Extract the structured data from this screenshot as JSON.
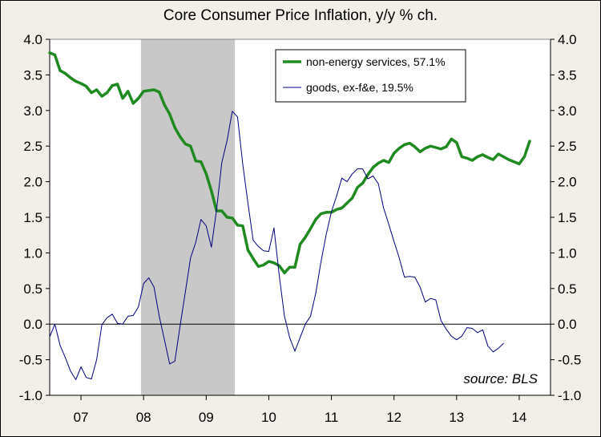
{
  "chart_data": {
    "type": "line",
    "title": "Core Consumer Price Inflation, y/y % ch.",
    "source_note": "source: BLS",
    "x_tick_labels": [
      "07",
      "08",
      "09",
      "10",
      "11",
      "12",
      "13",
      "14"
    ],
    "x_tick_values": [
      2007,
      2008,
      2009,
      2010,
      2011,
      2012,
      2013,
      2014
    ],
    "xlim": [
      2006.5,
      2014.5
    ],
    "ylim": [
      -1.0,
      4.0
    ],
    "y_ticks": [
      -1.0,
      -0.5,
      0.0,
      0.5,
      1.0,
      1.5,
      2.0,
      2.5,
      3.0,
      3.5,
      4.0
    ],
    "y_tick_labels": [
      "-1.0",
      "-0.5",
      "0.0",
      "0.5",
      "1.0",
      "1.5",
      "2.0",
      "2.5",
      "3.0",
      "3.5",
      "4.0"
    ],
    "axes_left_and_right": true,
    "grid": false,
    "legend_position": "top-center",
    "recession_shading": {
      "start": 2007.958,
      "end": 2009.458,
      "color": "#c8c8c8"
    },
    "series": [
      {
        "name": "non-energy services, 57.1%",
        "color": "#1f8a1f",
        "line_width": 3.5,
        "start": 2006.5,
        "step": 0.0833333,
        "values": [
          3.81,
          3.78,
          3.56,
          3.52,
          3.46,
          3.41,
          3.38,
          3.34,
          3.25,
          3.29,
          3.2,
          3.25,
          3.35,
          3.37,
          3.17,
          3.27,
          3.1,
          3.17,
          3.27,
          3.28,
          3.29,
          3.26,
          3.08,
          2.95,
          2.76,
          2.63,
          2.53,
          2.5,
          2.29,
          2.28,
          2.11,
          1.87,
          1.59,
          1.59,
          1.5,
          1.49,
          1.39,
          1.38,
          1.04,
          0.92,
          0.81,
          0.83,
          0.88,
          0.86,
          0.82,
          0.72,
          0.8,
          0.8,
          1.12,
          1.22,
          1.34,
          1.47,
          1.55,
          1.57,
          1.57,
          1.61,
          1.63,
          1.7,
          1.77,
          1.92,
          1.98,
          2.1,
          2.2,
          2.26,
          2.3,
          2.27,
          2.4,
          2.47,
          2.52,
          2.54,
          2.49,
          2.42,
          2.47,
          2.5,
          2.48,
          2.46,
          2.49,
          2.6,
          2.55,
          2.35,
          2.33,
          2.3,
          2.35,
          2.38,
          2.34,
          2.31,
          2.39,
          2.35,
          2.31,
          2.28,
          2.25,
          2.35,
          2.57
        ]
      },
      {
        "name": "goods, ex-f&e, 19.5%",
        "color": "#000080",
        "line_width": 1,
        "start": 2006.5,
        "step": 0.0833333,
        "values": [
          -0.18,
          0.0,
          -0.3,
          -0.47,
          -0.66,
          -0.78,
          -0.6,
          -0.75,
          -0.77,
          -0.5,
          -0.01,
          0.09,
          0.14,
          0.01,
          0.0,
          0.11,
          0.12,
          0.24,
          0.57,
          0.65,
          0.52,
          0.11,
          -0.22,
          -0.56,
          -0.52,
          -0.02,
          0.45,
          0.93,
          1.15,
          1.47,
          1.38,
          1.08,
          1.61,
          2.27,
          2.58,
          2.99,
          2.91,
          2.25,
          1.7,
          1.18,
          1.09,
          1.03,
          1.02,
          1.35,
          0.68,
          0.11,
          -0.19,
          -0.38,
          -0.19,
          0.0,
          0.11,
          0.43,
          0.87,
          1.26,
          1.58,
          1.8,
          2.05,
          2.0,
          2.11,
          2.18,
          2.18,
          2.04,
          2.08,
          1.97,
          1.63,
          1.4,
          1.16,
          0.93,
          0.66,
          0.67,
          0.66,
          0.52,
          0.31,
          0.36,
          0.34,
          0.05,
          -0.07,
          -0.17,
          -0.22,
          -0.17,
          -0.05,
          -0.06,
          -0.12,
          -0.08,
          -0.31,
          -0.39,
          -0.34,
          -0.27
        ]
      }
    ]
  }
}
